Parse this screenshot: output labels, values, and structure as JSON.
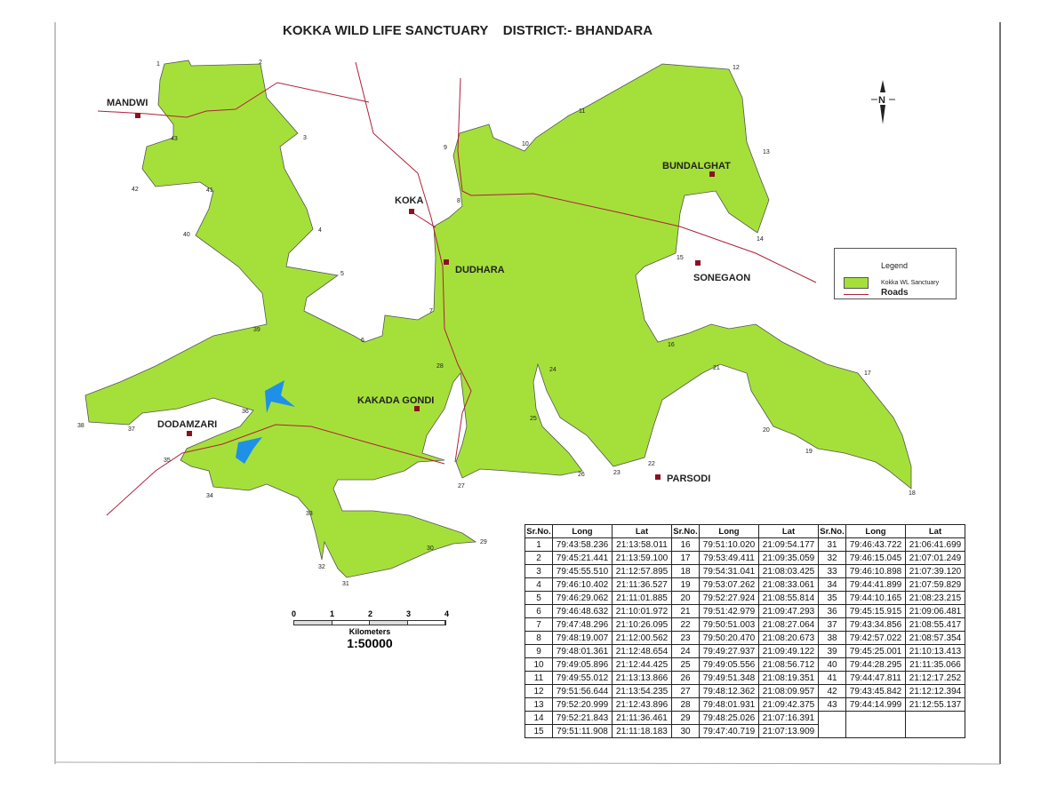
{
  "title": "KOKKA WILD LIFE SANCTUARY    DISTRICT:- BHANDARA",
  "north_label": "N",
  "colors": {
    "sanctuary": "#a5e03a",
    "water": "#1e90e8",
    "roads": "#b0203a"
  },
  "legend": {
    "title": "Legend",
    "items": [
      {
        "label": "Kokka WL Sanctuary",
        "symbol": "green-fill"
      },
      {
        "label": "Roads",
        "symbol": "red-line"
      }
    ]
  },
  "places": [
    "MANDWI",
    "KOKA",
    "DUDHARA",
    "BUNDALGHAT",
    "SONEGAON",
    "KAKADA GONDI",
    "DODAMZARI",
    "PARSODI"
  ],
  "scale": {
    "ticks": [
      "0",
      "1",
      "2",
      "3",
      "4"
    ],
    "unit": "Kilometers",
    "ratio": "1:50000"
  },
  "table": {
    "headers": [
      "Sr.No.",
      "Long",
      "Lat"
    ],
    "rows": [
      [
        "1",
        "79:43:58.236",
        "21:13:58.011"
      ],
      [
        "2",
        "79:45:21.441",
        "21:13:59.100"
      ],
      [
        "3",
        "79:45:55.510",
        "21:12:57.895"
      ],
      [
        "4",
        "79:46:10.402",
        "21:11:36.527"
      ],
      [
        "5",
        "79:46:29.062",
        "21:11:01.885"
      ],
      [
        "6",
        "79:46:48.632",
        "21:10:01.972"
      ],
      [
        "7",
        "79:47:48.296",
        "21:10:26.095"
      ],
      [
        "8",
        "79:48:19.007",
        "21:12:00.562"
      ],
      [
        "9",
        "79:48:01.361",
        "21:12:48.654"
      ],
      [
        "10",
        "79:49:05.896",
        "21:12:44.425"
      ],
      [
        "11",
        "79:49:55.012",
        "21:13:13.866"
      ],
      [
        "12",
        "79:51:56.644",
        "21:13:54.235"
      ],
      [
        "13",
        "79:52:20.999",
        "21:12:43.896"
      ],
      [
        "14",
        "79:52:21.843",
        "21:11:36.461"
      ],
      [
        "15",
        "79:51:11.908",
        "21:11:18.183"
      ],
      [
        "16",
        "79:51:10.020",
        "21:09:54.177"
      ],
      [
        "17",
        "79:53:49.411",
        "21:09:35.059"
      ],
      [
        "18",
        "79:54:31.041",
        "21:08:03.425"
      ],
      [
        "19",
        "79:53:07.262",
        "21:08:33.061"
      ],
      [
        "20",
        "79:52:27.924",
        "21:08:55.814"
      ],
      [
        "21",
        "79:51:42.979",
        "21:09:47.293"
      ],
      [
        "22",
        "79:50:51.003",
        "21:08:27.064"
      ],
      [
        "23",
        "79:50:20.470",
        "21:08:20.673"
      ],
      [
        "24",
        "79:49:27.937",
        "21:09:49.122"
      ],
      [
        "25",
        "79:49:05.556",
        "21:08:56.712"
      ],
      [
        "26",
        "79:49:51.348",
        "21:08:19.351"
      ],
      [
        "27",
        "79:48:12.362",
        "21:08:09.957"
      ],
      [
        "28",
        "79:48:01.931",
        "21:09:42.375"
      ],
      [
        "29",
        "79:48:25.026",
        "21:07:16.391"
      ],
      [
        "30",
        "79:47:40.719",
        "21:07:13.909"
      ],
      [
        "31",
        "79:46:43.722",
        "21:06:41.699"
      ],
      [
        "32",
        "79:46:15.045",
        "21:07:01.249"
      ],
      [
        "33",
        "79:46:10.898",
        "21:07:39.120"
      ],
      [
        "34",
        "79:44:41.899",
        "21:07:59.829"
      ],
      [
        "35",
        "79:44:10.165",
        "21:08:23.215"
      ],
      [
        "36",
        "79:45:15.915",
        "21:09:06.481"
      ],
      [
        "37",
        "79:43:34.856",
        "21:08:55.417"
      ],
      [
        "38",
        "79:42:57.022",
        "21:08:57.354"
      ],
      [
        "39",
        "79:45:25.001",
        "21:10:13.413"
      ],
      [
        "40",
        "79:44:28.295",
        "21:11:35.066"
      ],
      [
        "41",
        "79:44:47.811",
        "21:12:17.252"
      ],
      [
        "42",
        "79:43:45.842",
        "21:12:12.394"
      ],
      [
        "43",
        "79:44:14.999",
        "21:12:55.137"
      ]
    ]
  }
}
